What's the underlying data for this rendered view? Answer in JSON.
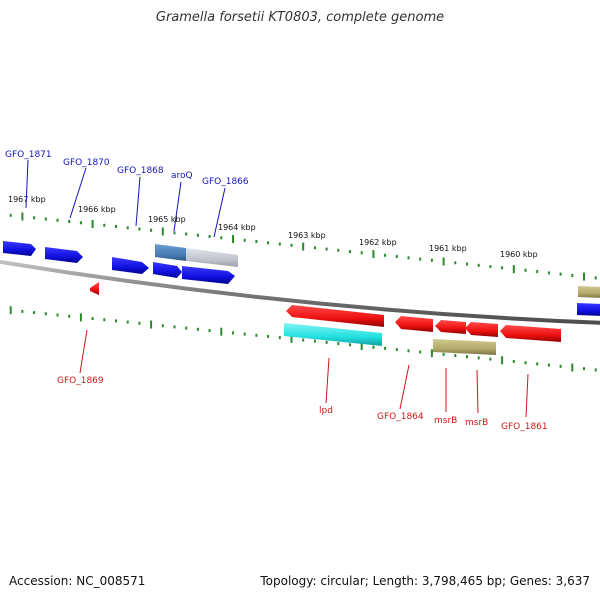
{
  "title": "Gramella forsetii KT0803, complete genome",
  "footer": {
    "accession": "Accession: NC_008571",
    "summary": "Topology: circular; Length: 3,798,465 bp; Genes: 3,637"
  },
  "colors": {
    "forward_gene": "#1010e0",
    "reverse_gene": "#ee1010",
    "rna": "#22dddd",
    "olive": "#b3aa6a",
    "gray_gene": "#c0c4cc",
    "steel": "#4a7fb5",
    "tick": "#2a8a2a",
    "backbone": "#7a7a7a",
    "forward_label": "#1414b4",
    "reverse_label": "#cc1818"
  },
  "scale_labels": [
    "1967 kbp",
    "1966 kbp",
    "1965 kbp",
    "1964 kbp",
    "1963 kbp",
    "1962 kbp",
    "1961 kbp",
    "1960 kbp"
  ],
  "forward_labels": [
    "GFO_1871",
    "GFO_1870",
    "GFO_1868",
    "aroQ",
    "GFO_1866"
  ],
  "reverse_labels": [
    "GFO_1869",
    "lpd",
    "GFO_1864",
    "msrB",
    "msrB",
    "GFO_1861"
  ]
}
